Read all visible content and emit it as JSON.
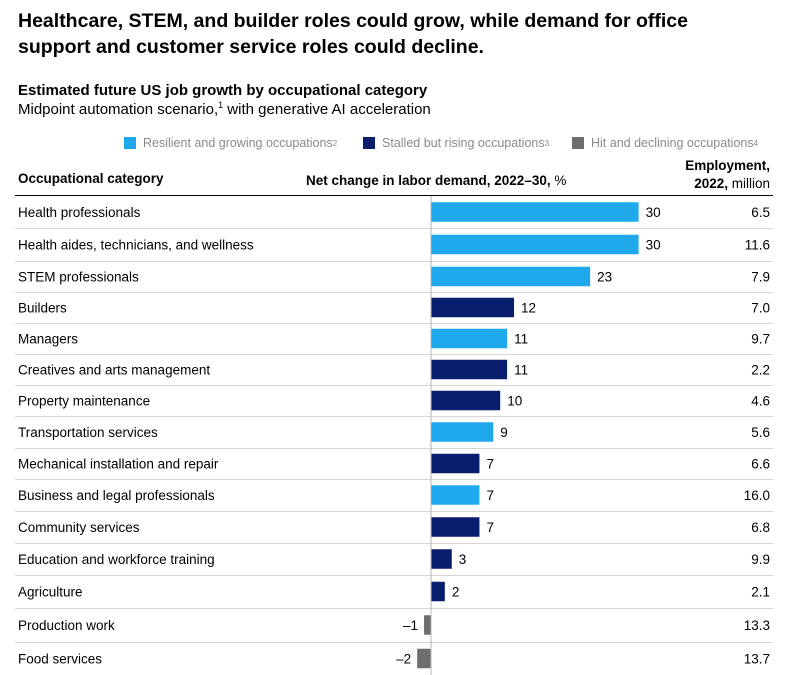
{
  "headline": "Healthcare, STEM, and builder roles could grow, while demand for office support and customer service roles could decline.",
  "subtitle": "Estimated future US job growth by occupational category",
  "scenario": {
    "text": "Midpoint automation scenario,",
    "footnote": "1",
    "text_after": " with generative AI acceleration"
  },
  "legend": [
    {
      "label": "Resilient and growing occupations",
      "footnote": "2",
      "color": "#1fa8ec"
    },
    {
      "label": "Stalled but rising occupations",
      "footnote": "3",
      "color": "#0a1e6e"
    },
    {
      "label": "Hit and declining occupations",
      "footnote": "4",
      "color": "#6e6e6e"
    }
  ],
  "headers": {
    "category": "Occupational category",
    "net_change_bold": "Net change in labor demand, 2022–30,",
    "net_change_unit": " %",
    "employment_bold": "Employment,",
    "employment_year": "2022,",
    "employment_unit": " million"
  },
  "chart_data": {
    "type": "bar",
    "orientation": "horizontal",
    "title": "Estimated future US job growth by occupational category",
    "xlabel": "Net change in labor demand, 2022–30, %",
    "categories": [
      "Health professionals",
      "Health aides, technicians, and wellness",
      "STEM professionals",
      "Builders",
      "Managers",
      "Creatives and arts management",
      "Property maintenance",
      "Transportation services",
      "Mechanical installation and repair",
      "Business and legal professionals",
      "Community services",
      "Education and workforce training",
      "Agriculture",
      "Production work",
      "Food services"
    ],
    "values": [
      30,
      30,
      23,
      12,
      11,
      11,
      10,
      9,
      7,
      7,
      7,
      3,
      2,
      -1,
      -2
    ],
    "value_labels": [
      "30",
      "30",
      "23",
      "12",
      "11",
      "11",
      "10",
      "9",
      "7",
      "7",
      "7",
      "3",
      "2",
      "–1",
      "–2"
    ],
    "groups": [
      "resilient",
      "resilient",
      "resilient",
      "stalled",
      "resilient",
      "stalled",
      "stalled",
      "resilient",
      "stalled",
      "resilient",
      "stalled",
      "stalled",
      "stalled",
      "declining",
      "declining"
    ],
    "group_colors": {
      "resilient": "#1fa8ec",
      "stalled": "#0a1e6e",
      "declining": "#6e6e6e"
    },
    "employment_2022_million": [
      "6.5",
      "11.6",
      "7.9",
      "7.0",
      "9.7",
      "2.2",
      "4.6",
      "5.6",
      "6.6",
      "16.0",
      "6.8",
      "9.9",
      "2.1",
      "13.3",
      "13.7"
    ],
    "xlim": [
      -2,
      30
    ]
  }
}
